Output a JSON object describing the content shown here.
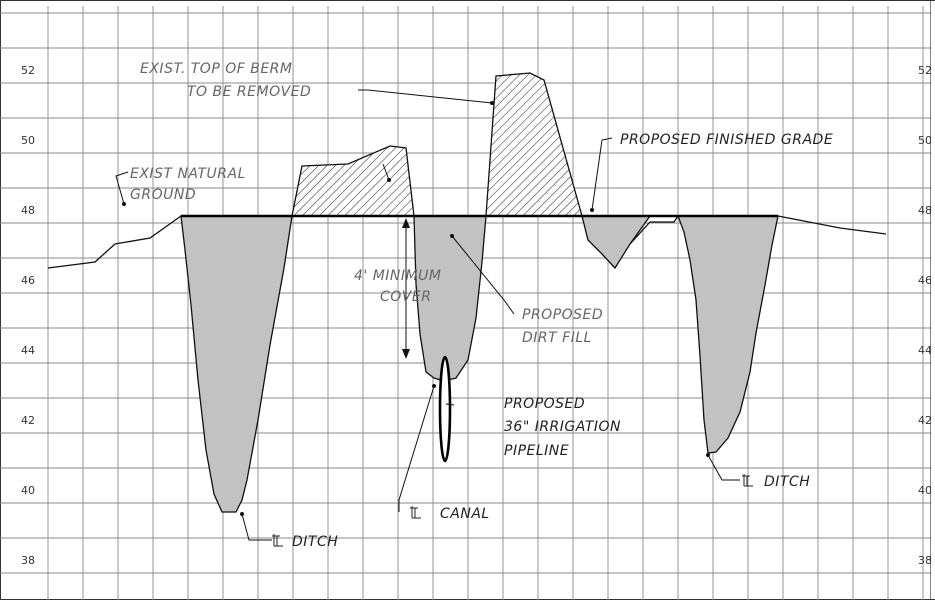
{
  "elevation_labels": {
    "left": [
      "52",
      "50",
      "48",
      "46",
      "44",
      "42",
      "40",
      "38"
    ],
    "right": [
      "52",
      "50",
      "48",
      "46",
      "44",
      "42",
      "40",
      "38"
    ]
  },
  "annotations": {
    "berm_line1": "EXIST. TOP OF BERM",
    "berm_line2": "TO BE REMOVED",
    "grade": "PROPOSED FINISHED GRADE",
    "natural_line1": "EXIST NATURAL",
    "natural_line2": "GROUND",
    "cover_line1": "4' MINIMUM",
    "cover_line2": "COVER",
    "fill_line1": "PROPOSED",
    "fill_line2": "DIRT FILL",
    "pipe_line1": "PROPOSED",
    "pipe_line2": "36\" IRRIGATION",
    "pipe_line3": "PIPELINE",
    "ditch_left": "DITCH",
    "canal": "CANAL",
    "ditch_right": "DITCH"
  },
  "colors": {
    "cut_fill": "#c2c2c2",
    "grid": "#8a8a8a",
    "linework": "#111111"
  }
}
